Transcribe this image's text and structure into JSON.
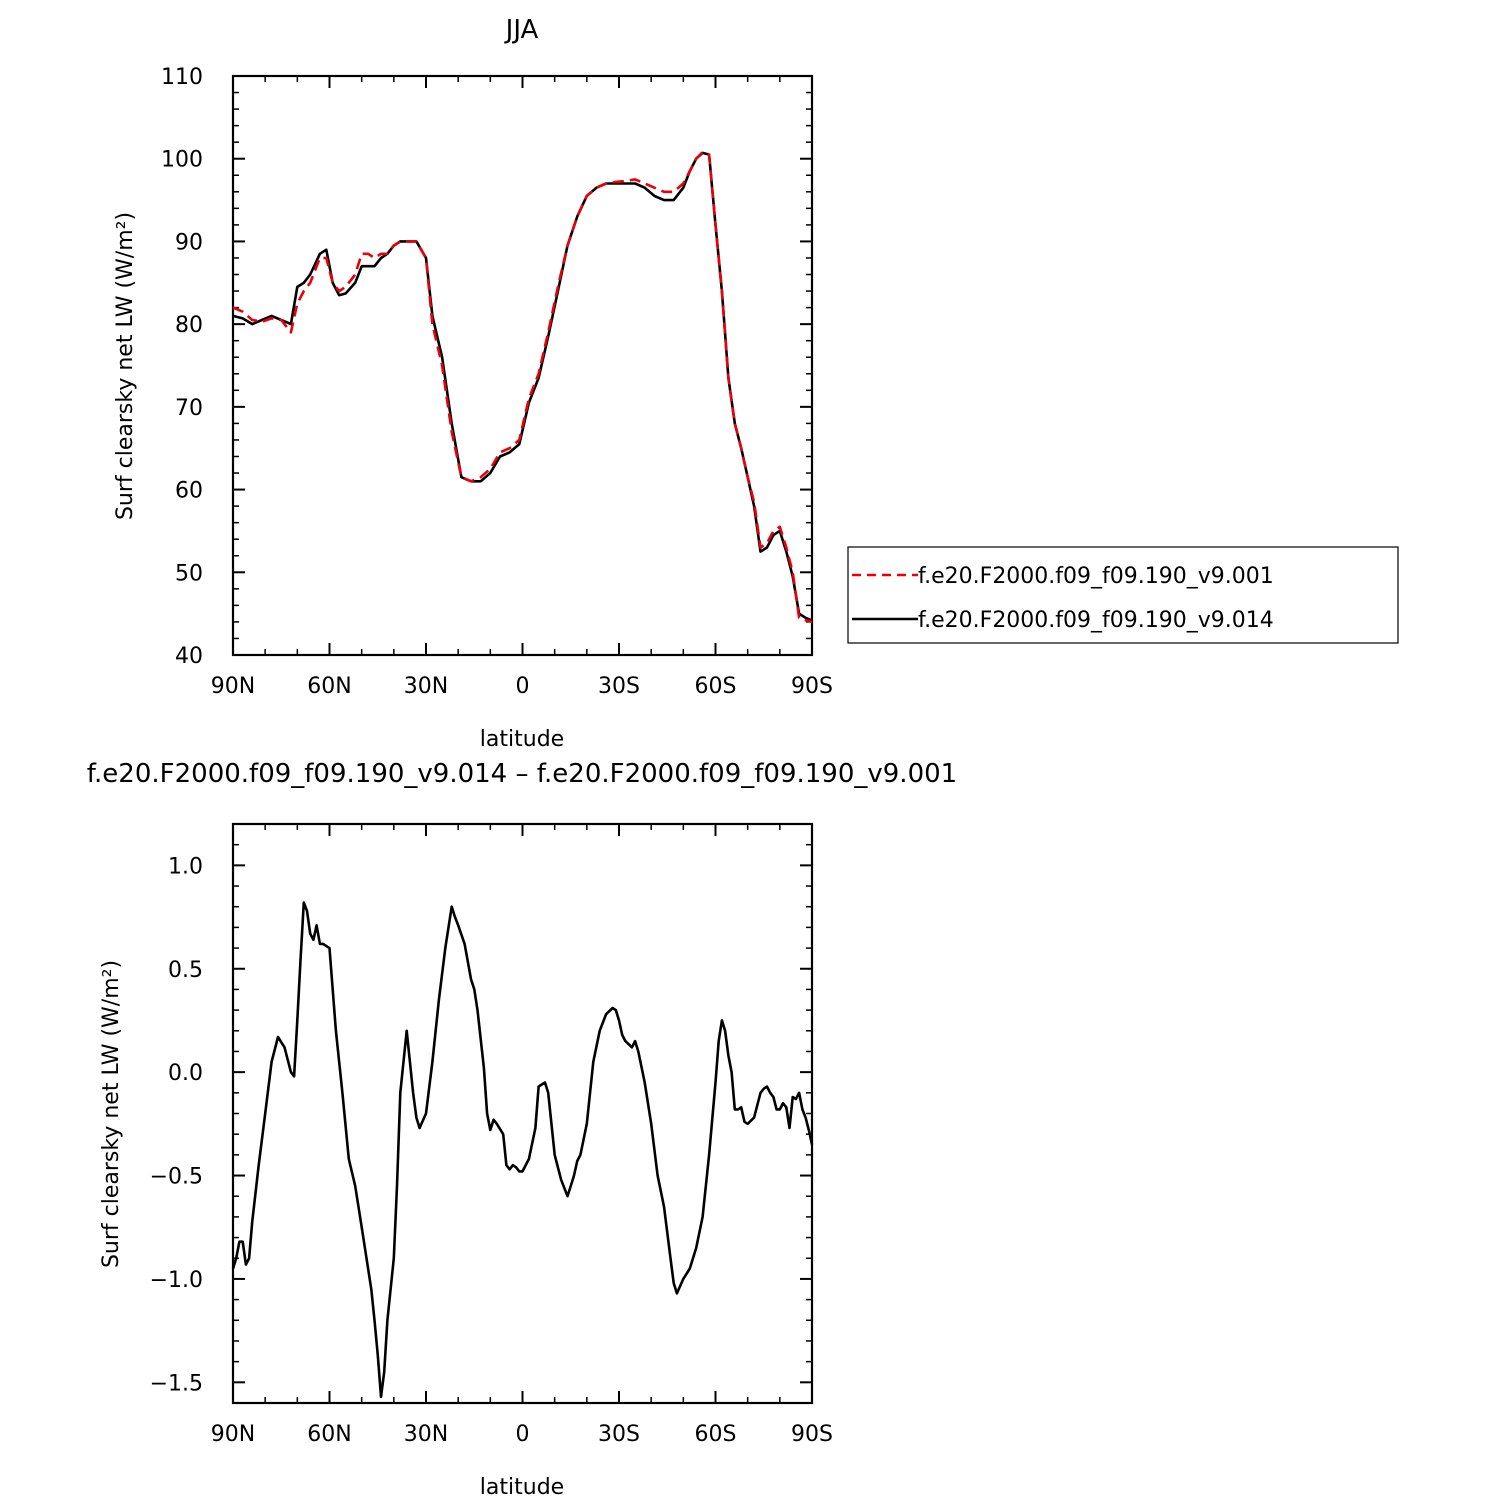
{
  "chart_data": [
    {
      "type": "line",
      "title": "JJA",
      "xlabel": "latitude",
      "ylabel": "Surf clearsky net LW (W/m²)",
      "xlim": [
        90,
        -90
      ],
      "ylim": [
        40,
        110
      ],
      "x_ticks": [
        {
          "value": 90,
          "label": "90N"
        },
        {
          "value": 60,
          "label": "60N"
        },
        {
          "value": 30,
          "label": "30N"
        },
        {
          "value": 0,
          "label": "0"
        },
        {
          "value": -30,
          "label": "30S"
        },
        {
          "value": -60,
          "label": "60S"
        },
        {
          "value": -90,
          "label": "90S"
        }
      ],
      "y_ticks": [
        {
          "value": 40,
          "label": "40"
        },
        {
          "value": 50,
          "label": "50"
        },
        {
          "value": 60,
          "label": "60"
        },
        {
          "value": 70,
          "label": "70"
        },
        {
          "value": 80,
          "label": "80"
        },
        {
          "value": 90,
          "label": "90"
        },
        {
          "value": 100,
          "label": "100"
        },
        {
          "value": 110,
          "label": "110"
        }
      ],
      "grid": false,
      "legend_position": "right",
      "series": [
        {
          "name": "f.e20.F2000.f09_f09.190_v9.001",
          "color": "#e8000b",
          "dash": "dashed",
          "x": [
            90,
            87,
            84,
            81,
            78,
            75,
            72,
            70,
            68,
            66,
            63,
            61,
            59,
            57,
            55,
            52,
            50,
            48,
            46,
            44,
            42,
            40,
            38,
            36,
            33,
            30,
            28,
            25,
            22,
            19,
            16,
            13,
            10,
            7,
            4,
            1,
            -2,
            -5,
            -8,
            -11,
            -14,
            -17,
            -20,
            -23,
            -26,
            -29,
            -32,
            -35,
            -38,
            -41,
            -44,
            -47,
            -50,
            -52,
            -54,
            -56,
            -58,
            -60,
            -62,
            -64,
            -66,
            -68,
            -70,
            -72,
            -74,
            -76,
            -78,
            -80,
            -82,
            -84,
            -86,
            -88,
            -90
          ],
          "y": [
            82.0,
            81.5,
            80.5,
            80.3,
            80.7,
            80.5,
            79.0,
            82.5,
            84.0,
            85.0,
            88.0,
            88.0,
            85.0,
            84.0,
            84.5,
            86.0,
            88.5,
            88.5,
            88.0,
            88.5,
            88.5,
            89.5,
            90.0,
            90.0,
            90.0,
            88.0,
            80.0,
            75.0,
            67.0,
            61.5,
            61.0,
            61.5,
            62.5,
            64.5,
            65.0,
            66.0,
            71.0,
            74.0,
            79.0,
            84.5,
            89.5,
            93.0,
            95.5,
            96.5,
            97.0,
            97.2,
            97.3,
            97.5,
            97.0,
            96.5,
            96.0,
            96.0,
            97.0,
            98.5,
            100.0,
            100.8,
            100.5,
            92.0,
            84.0,
            73.5,
            68.0,
            65.0,
            61.5,
            58.5,
            53.0,
            53.5,
            55.0,
            55.5,
            53.0,
            50.0,
            44.5,
            44.2,
            44.0
          ]
        },
        {
          "name": "f.e20.F2000.f09_f09.190_v9.014",
          "color": "#000000",
          "dash": "solid",
          "x": [
            90,
            87,
            84,
            81,
            78,
            75,
            72,
            70,
            68,
            66,
            63,
            61,
            59,
            57,
            55,
            52,
            50,
            48,
            46,
            44,
            42,
            40,
            38,
            36,
            33,
            30,
            28,
            25,
            22,
            19,
            16,
            13,
            10,
            7,
            4,
            1,
            -2,
            -5,
            -8,
            -11,
            -14,
            -17,
            -20,
            -23,
            -26,
            -29,
            -32,
            -35,
            -38,
            -41,
            -44,
            -47,
            -50,
            -52,
            -54,
            -56,
            -58,
            -60,
            -62,
            -64,
            -66,
            -68,
            -70,
            -72,
            -74,
            -76,
            -78,
            -80,
            -82,
            -84,
            -86,
            -88,
            -90
          ],
          "y": [
            81.0,
            80.7,
            80.0,
            80.5,
            81.0,
            80.5,
            80.0,
            84.5,
            85.0,
            86.0,
            88.5,
            89.0,
            85.0,
            83.5,
            83.7,
            85.0,
            87.0,
            87.0,
            87.0,
            88.0,
            88.5,
            89.5,
            90.0,
            90.0,
            90.0,
            88.0,
            81.0,
            76.0,
            68.0,
            61.5,
            61.0,
            61.0,
            62.0,
            64.0,
            64.5,
            65.5,
            70.5,
            73.5,
            78.5,
            84.0,
            89.5,
            93.0,
            95.5,
            96.5,
            97.0,
            97.0,
            97.0,
            97.0,
            96.5,
            95.5,
            95.0,
            95.0,
            96.5,
            98.5,
            100.0,
            100.7,
            100.5,
            92.0,
            84.0,
            73.5,
            68.0,
            65.0,
            61.5,
            58.0,
            52.5,
            53.0,
            54.5,
            55.0,
            52.5,
            49.5,
            45.0,
            44.5,
            44.2
          ]
        }
      ]
    },
    {
      "type": "line",
      "title": "f.e20.F2000.f09_f09.190_v9.014 – f.e20.F2000.f09_f09.190_v9.001",
      "xlabel": "latitude",
      "ylabel": "Surf clearsky net LW (W/m²)",
      "xlim": [
        90,
        -90
      ],
      "ylim": [
        -1.6,
        1.2
      ],
      "x_ticks": [
        {
          "value": 90,
          "label": "90N"
        },
        {
          "value": 60,
          "label": "60N"
        },
        {
          "value": 30,
          "label": "30N"
        },
        {
          "value": 0,
          "label": "0"
        },
        {
          "value": -30,
          "label": "30S"
        },
        {
          "value": -60,
          "label": "60S"
        },
        {
          "value": -90,
          "label": "90S"
        }
      ],
      "y_ticks": [
        {
          "value": -1.5,
          "label": "−1.5"
        },
        {
          "value": -1.0,
          "label": "−1.0"
        },
        {
          "value": -0.5,
          "label": "−0.5"
        },
        {
          "value": 0.0,
          "label": "0.0"
        },
        {
          "value": 0.5,
          "label": "0.5"
        },
        {
          "value": 1.0,
          "label": "1.0"
        }
      ],
      "grid": false,
      "series": [
        {
          "color": "#000000",
          "dash": "solid",
          "x": [
            90,
            89,
            88,
            87,
            86,
            85,
            84,
            82,
            80,
            78,
            76,
            74,
            72,
            71,
            70,
            69,
            68,
            67,
            66,
            65,
            64,
            63,
            62,
            60,
            58,
            56,
            54,
            52,
            50,
            48,
            47,
            46,
            45,
            44,
            43,
            42,
            40,
            39,
            38,
            36,
            34,
            33,
            32,
            30,
            28,
            26,
            24,
            22,
            21,
            20,
            18,
            16,
            15,
            14,
            12,
            11,
            10,
            9,
            8,
            6,
            5,
            4,
            3,
            2,
            1,
            0,
            -2,
            -4,
            -5,
            -6,
            -7,
            -8,
            -10,
            -12,
            -14,
            -15,
            -16,
            -17,
            -18,
            -20,
            -22,
            -24,
            -26,
            -28,
            -29,
            -30,
            -31,
            -32,
            -34,
            -35,
            -36,
            -38,
            -40,
            -42,
            -44,
            -46,
            -47,
            -48,
            -50,
            -52,
            -54,
            -56,
            -58,
            -60,
            -61,
            -62,
            -63,
            -64,
            -65,
            -66,
            -67,
            -68,
            -69,
            -70,
            -72,
            -74,
            -75,
            -76,
            -77,
            -78,
            -79,
            -80,
            -81,
            -82,
            -83,
            -84,
            -85,
            -86,
            -87,
            -88,
            -89,
            -90
          ],
          "y": [
            -0.95,
            -0.9,
            -0.82,
            -0.82,
            -0.93,
            -0.9,
            -0.72,
            -0.45,
            -0.2,
            0.05,
            0.17,
            0.12,
            0.0,
            -0.02,
            0.25,
            0.55,
            0.82,
            0.78,
            0.67,
            0.64,
            0.71,
            0.62,
            0.62,
            0.6,
            0.2,
            -0.1,
            -0.42,
            -0.55,
            -0.75,
            -0.95,
            -1.05,
            -1.2,
            -1.37,
            -1.57,
            -1.45,
            -1.2,
            -0.9,
            -0.55,
            -0.1,
            0.2,
            -0.1,
            -0.22,
            -0.27,
            -0.2,
            0.05,
            0.35,
            0.6,
            0.8,
            0.75,
            0.71,
            0.62,
            0.45,
            0.4,
            0.3,
            0.02,
            -0.2,
            -0.28,
            -0.23,
            -0.25,
            -0.3,
            -0.45,
            -0.47,
            -0.45,
            -0.46,
            -0.48,
            -0.48,
            -0.42,
            -0.27,
            -0.07,
            -0.06,
            -0.05,
            -0.1,
            -0.4,
            -0.52,
            -0.6,
            -0.55,
            -0.5,
            -0.43,
            -0.4,
            -0.25,
            0.05,
            0.2,
            0.28,
            0.31,
            0.3,
            0.25,
            0.18,
            0.15,
            0.12,
            0.15,
            0.1,
            -0.05,
            -0.25,
            -0.5,
            -0.65,
            -0.9,
            -1.02,
            -1.07,
            -1.0,
            -0.95,
            -0.85,
            -0.7,
            -0.4,
            -0.05,
            0.15,
            0.25,
            0.2,
            0.08,
            0.0,
            -0.18,
            -0.18,
            -0.17,
            -0.24,
            -0.25,
            -0.22,
            -0.1,
            -0.08,
            -0.07,
            -0.1,
            -0.12,
            -0.18,
            -0.18,
            -0.15,
            -0.17,
            -0.27,
            -0.12,
            -0.13,
            -0.1,
            -0.18,
            -0.22,
            -0.28,
            -0.35
          ]
        }
      ]
    }
  ]
}
